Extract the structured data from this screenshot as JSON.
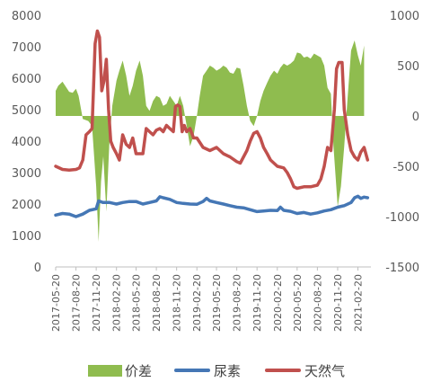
{
  "chart_data": {
    "type": "line",
    "title": "",
    "xlabel": "",
    "ylabel": "",
    "y_left": {
      "ticks": [
        "0",
        "1000",
        "2000",
        "3000",
        "4000",
        "5000",
        "6000",
        "7000",
        "8000"
      ],
      "range": [
        0,
        8000
      ]
    },
    "y_right": {
      "ticks": [
        "1000",
        "500",
        "0",
        "-500",
        "-1000",
        "-1500"
      ],
      "range": [
        -1500,
        1000
      ]
    },
    "x_ticks": [
      "2017-05-20",
      "2017-08-20",
      "2017-11-20",
      "2018-02-20",
      "2018-05-20",
      "2018-08-20",
      "2018-11-20",
      "2019-02-20",
      "2019-05-20",
      "2019-08-20",
      "2019-11-20",
      "2020-02-20",
      "2020-05-20",
      "2020-08-20",
      "2020-11-20",
      "2021-02-20"
    ],
    "x_range": [
      "2017-05-20",
      "2021-04-20"
    ],
    "legend_position": "bottom",
    "series": [
      {
        "name": "价差",
        "kind": "area",
        "axis": "right",
        "color": "#8fbc4f",
        "points": [
          [
            "2017-05-20",
            250
          ],
          [
            "2017-06-01",
            300
          ],
          [
            "2017-06-20",
            340
          ],
          [
            "2017-07-05",
            290
          ],
          [
            "2017-07-20",
            240
          ],
          [
            "2017-08-05",
            230
          ],
          [
            "2017-08-20",
            270
          ],
          [
            "2017-09-01",
            200
          ],
          [
            "2017-09-20",
            -30
          ],
          [
            "2017-10-15",
            -50
          ],
          [
            "2017-11-01",
            -100
          ],
          [
            "2017-11-20",
            -700
          ],
          [
            "2017-12-01",
            -1250
          ],
          [
            "2017-12-12",
            -650
          ],
          [
            "2017-12-22",
            -400
          ],
          [
            "2018-01-05",
            -950
          ],
          [
            "2018-01-18",
            -300
          ],
          [
            "2018-02-01",
            100
          ],
          [
            "2018-02-20",
            350
          ],
          [
            "2018-03-05",
            450
          ],
          [
            "2018-03-20",
            550
          ],
          [
            "2018-04-05",
            400
          ],
          [
            "2018-04-20",
            200
          ],
          [
            "2018-05-05",
            300
          ],
          [
            "2018-05-20",
            450
          ],
          [
            "2018-06-05",
            550
          ],
          [
            "2018-06-20",
            400
          ],
          [
            "2018-07-05",
            100
          ],
          [
            "2018-07-20",
            50
          ],
          [
            "2018-08-05",
            150
          ],
          [
            "2018-08-20",
            200
          ],
          [
            "2018-09-05",
            180
          ],
          [
            "2018-09-20",
            100
          ],
          [
            "2018-10-05",
            120
          ],
          [
            "2018-10-20",
            200
          ],
          [
            "2018-11-05",
            150
          ],
          [
            "2018-11-20",
            100
          ],
          [
            "2018-12-05",
            200
          ],
          [
            "2018-12-20",
            100
          ],
          [
            "2019-01-05",
            -100
          ],
          [
            "2019-01-20",
            -300
          ],
          [
            "2019-02-05",
            -200
          ],
          [
            "2019-02-20",
            0
          ],
          [
            "2019-03-05",
            200
          ],
          [
            "2019-03-20",
            400
          ],
          [
            "2019-04-05",
            450
          ],
          [
            "2019-04-20",
            500
          ],
          [
            "2019-05-05",
            480
          ],
          [
            "2019-05-20",
            450
          ],
          [
            "2019-06-05",
            470
          ],
          [
            "2019-06-20",
            500
          ],
          [
            "2019-07-05",
            480
          ],
          [
            "2019-07-20",
            430
          ],
          [
            "2019-08-05",
            420
          ],
          [
            "2019-08-20",
            480
          ],
          [
            "2019-09-05",
            470
          ],
          [
            "2019-09-20",
            300
          ],
          [
            "2019-10-05",
            100
          ],
          [
            "2019-10-20",
            -50
          ],
          [
            "2019-11-05",
            -100
          ],
          [
            "2019-11-20",
            0
          ],
          [
            "2019-12-05",
            150
          ],
          [
            "2019-12-20",
            250
          ],
          [
            "2020-01-05",
            330
          ],
          [
            "2020-01-20",
            400
          ],
          [
            "2020-02-05",
            450
          ],
          [
            "2020-02-20",
            420
          ],
          [
            "2020-03-05",
            480
          ],
          [
            "2020-03-20",
            520
          ],
          [
            "2020-04-05",
            500
          ],
          [
            "2020-04-20",
            520
          ],
          [
            "2020-05-05",
            550
          ],
          [
            "2020-05-20",
            630
          ],
          [
            "2020-06-05",
            620
          ],
          [
            "2020-06-20",
            580
          ],
          [
            "2020-07-05",
            590
          ],
          [
            "2020-07-20",
            570
          ],
          [
            "2020-08-05",
            620
          ],
          [
            "2020-08-20",
            600
          ],
          [
            "2020-09-05",
            580
          ],
          [
            "2020-09-20",
            500
          ],
          [
            "2020-10-05",
            280
          ],
          [
            "2020-10-20",
            220
          ],
          [
            "2020-11-01",
            -300
          ],
          [
            "2020-11-20",
            -900
          ],
          [
            "2020-12-05",
            -700
          ],
          [
            "2020-12-20",
            -300
          ],
          [
            "2021-01-05",
            200
          ],
          [
            "2021-01-20",
            650
          ],
          [
            "2021-02-05",
            750
          ],
          [
            "2021-02-20",
            600
          ],
          [
            "2021-03-05",
            500
          ],
          [
            "2021-03-20",
            700
          ]
        ]
      },
      {
        "name": "尿素",
        "kind": "line",
        "axis": "left",
        "color": "#4577b5",
        "points": [
          [
            "2017-05-20",
            1650
          ],
          [
            "2017-06-20",
            1700
          ],
          [
            "2017-07-20",
            1680
          ],
          [
            "2017-08-20",
            1600
          ],
          [
            "2017-09-20",
            1680
          ],
          [
            "2017-10-20",
            1800
          ],
          [
            "2017-11-20",
            1850
          ],
          [
            "2017-12-01",
            2100
          ],
          [
            "2017-12-20",
            2050
          ],
          [
            "2018-01-20",
            2050
          ],
          [
            "2018-02-20",
            2000
          ],
          [
            "2018-03-20",
            2050
          ],
          [
            "2018-04-20",
            2080
          ],
          [
            "2018-05-20",
            2080
          ],
          [
            "2018-06-20",
            2000
          ],
          [
            "2018-07-20",
            2050
          ],
          [
            "2018-08-20",
            2100
          ],
          [
            "2018-09-05",
            2230
          ],
          [
            "2018-09-20",
            2200
          ],
          [
            "2018-10-20",
            2150
          ],
          [
            "2018-11-20",
            2050
          ],
          [
            "2018-12-20",
            2020
          ],
          [
            "2019-01-20",
            2000
          ],
          [
            "2019-02-20",
            1990
          ],
          [
            "2019-03-20",
            2080
          ],
          [
            "2019-04-05",
            2180
          ],
          [
            "2019-04-20",
            2100
          ],
          [
            "2019-05-20",
            2050
          ],
          [
            "2019-06-20",
            2000
          ],
          [
            "2019-07-20",
            1950
          ],
          [
            "2019-08-20",
            1900
          ],
          [
            "2019-09-20",
            1880
          ],
          [
            "2019-10-20",
            1820
          ],
          [
            "2019-11-20",
            1760
          ],
          [
            "2019-12-20",
            1780
          ],
          [
            "2020-01-20",
            1800
          ],
          [
            "2020-02-20",
            1790
          ],
          [
            "2020-03-05",
            1900
          ],
          [
            "2020-03-20",
            1800
          ],
          [
            "2020-04-20",
            1770
          ],
          [
            "2020-05-20",
            1700
          ],
          [
            "2020-06-20",
            1730
          ],
          [
            "2020-07-20",
            1680
          ],
          [
            "2020-08-20",
            1720
          ],
          [
            "2020-09-20",
            1780
          ],
          [
            "2020-10-20",
            1820
          ],
          [
            "2020-11-20",
            1900
          ],
          [
            "2020-12-20",
            1950
          ],
          [
            "2021-01-20",
            2050
          ],
          [
            "2021-02-05",
            2200
          ],
          [
            "2021-02-20",
            2250
          ],
          [
            "2021-03-05",
            2180
          ],
          [
            "2021-03-20",
            2220
          ],
          [
            "2021-04-05",
            2200
          ]
        ]
      },
      {
        "name": "天然气",
        "kind": "line",
        "axis": "left",
        "color": "#c0504d",
        "points": [
          [
            "2017-05-20",
            3200
          ],
          [
            "2017-06-20",
            3100
          ],
          [
            "2017-07-20",
            3080
          ],
          [
            "2017-08-20",
            3100
          ],
          [
            "2017-09-05",
            3150
          ],
          [
            "2017-09-20",
            3400
          ],
          [
            "2017-10-05",
            4200
          ],
          [
            "2017-10-20",
            4300
          ],
          [
            "2017-11-01",
            4400
          ],
          [
            "2017-11-15",
            7100
          ],
          [
            "2017-11-25",
            7500
          ],
          [
            "2017-12-05",
            7300
          ],
          [
            "2017-12-15",
            5600
          ],
          [
            "2017-12-25",
            5900
          ],
          [
            "2018-01-05",
            6600
          ],
          [
            "2018-01-15",
            5000
          ],
          [
            "2018-01-25",
            4000
          ],
          [
            "2018-02-05",
            3800
          ],
          [
            "2018-02-20",
            3600
          ],
          [
            "2018-03-05",
            3400
          ],
          [
            "2018-03-20",
            4200
          ],
          [
            "2018-04-05",
            3900
          ],
          [
            "2018-04-20",
            3800
          ],
          [
            "2018-05-05",
            4100
          ],
          [
            "2018-05-20",
            3600
          ],
          [
            "2018-06-20",
            3600
          ],
          [
            "2018-07-05",
            4400
          ],
          [
            "2018-07-20",
            4300
          ],
          [
            "2018-08-05",
            4200
          ],
          [
            "2018-08-20",
            4350
          ],
          [
            "2018-09-05",
            4400
          ],
          [
            "2018-09-20",
            4300
          ],
          [
            "2018-10-05",
            4500
          ],
          [
            "2018-10-20",
            4400
          ],
          [
            "2018-11-05",
            4300
          ],
          [
            "2018-11-15",
            5100
          ],
          [
            "2018-11-25",
            5150
          ],
          [
            "2018-12-05",
            5100
          ],
          [
            "2018-12-15",
            4300
          ],
          [
            "2018-12-25",
            4500
          ],
          [
            "2019-01-05",
            4300
          ],
          [
            "2019-01-20",
            4400
          ],
          [
            "2019-02-05",
            4100
          ],
          [
            "2019-02-20",
            4100
          ],
          [
            "2019-03-20",
            3800
          ],
          [
            "2019-04-20",
            3700
          ],
          [
            "2019-05-20",
            3800
          ],
          [
            "2019-06-20",
            3600
          ],
          [
            "2019-07-20",
            3500
          ],
          [
            "2019-08-20",
            3350
          ],
          [
            "2019-09-05",
            3300
          ],
          [
            "2019-09-20",
            3500
          ],
          [
            "2019-10-05",
            3700
          ],
          [
            "2019-10-20",
            4000
          ],
          [
            "2019-11-05",
            4250
          ],
          [
            "2019-11-20",
            4300
          ],
          [
            "2019-12-05",
            4100
          ],
          [
            "2019-12-20",
            3800
          ],
          [
            "2020-01-05",
            3600
          ],
          [
            "2020-01-20",
            3400
          ],
          [
            "2020-02-20",
            3200
          ],
          [
            "2020-03-20",
            3150
          ],
          [
            "2020-04-05",
            3000
          ],
          [
            "2020-04-20",
            2800
          ],
          [
            "2020-05-05",
            2550
          ],
          [
            "2020-05-20",
            2500
          ],
          [
            "2020-06-20",
            2550
          ],
          [
            "2020-07-20",
            2550
          ],
          [
            "2020-08-20",
            2600
          ],
          [
            "2020-09-05",
            2800
          ],
          [
            "2020-09-20",
            3200
          ],
          [
            "2020-10-05",
            3800
          ],
          [
            "2020-10-20",
            3700
          ],
          [
            "2020-11-05",
            5000
          ],
          [
            "2020-11-15",
            6300
          ],
          [
            "2020-11-25",
            6500
          ],
          [
            "2020-12-10",
            6500
          ],
          [
            "2020-12-20",
            5000
          ],
          [
            "2021-01-05",
            4200
          ],
          [
            "2021-01-20",
            3700
          ],
          [
            "2021-02-05",
            3500
          ],
          [
            "2021-02-20",
            3400
          ],
          [
            "2021-03-05",
            3650
          ],
          [
            "2021-03-20",
            3800
          ],
          [
            "2021-04-05",
            3400
          ]
        ]
      }
    ]
  }
}
